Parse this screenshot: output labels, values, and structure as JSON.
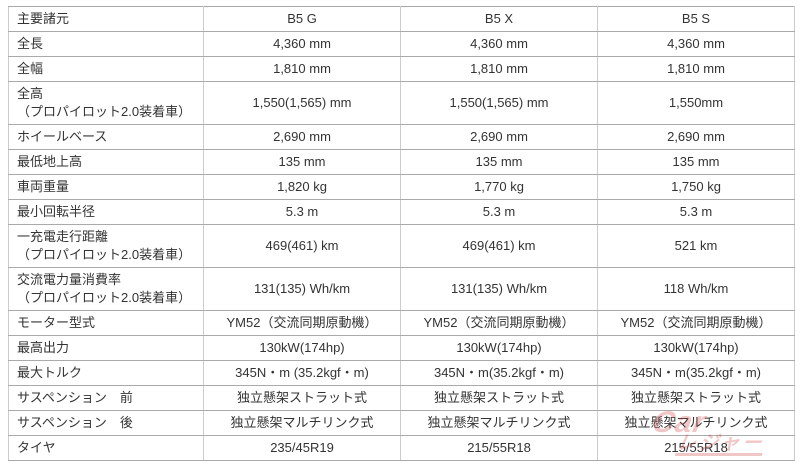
{
  "table": {
    "header": [
      "主要諸元",
      "B5 G",
      "B5 X",
      "B5 S"
    ],
    "rows": [
      {
        "label": "全長",
        "values": [
          "4,360 mm",
          "4,360 mm",
          "4,360 mm"
        ]
      },
      {
        "label": "全幅",
        "values": [
          "1,810 mm",
          "1,810 mm",
          "1,810 mm"
        ]
      },
      {
        "label": "全高",
        "label2": "（プロパイロット2.0装着車）",
        "values": [
          "1,550(1,565) mm",
          "1,550(1,565) mm",
          "1,550mm"
        ]
      },
      {
        "label": "ホイールベース",
        "values": [
          "2,690 mm",
          "2,690 mm",
          "2,690 mm"
        ]
      },
      {
        "label": "最低地上高",
        "values": [
          "135 mm",
          "135 mm",
          "135 mm"
        ]
      },
      {
        "label": "車両重量",
        "values": [
          "1,820 kg",
          "1,770 kg",
          "1,750 kg"
        ]
      },
      {
        "label": "最小回転半径",
        "values": [
          "5.3 m",
          "5.3 m",
          "5.3 m"
        ]
      },
      {
        "label": "一充電走行距離",
        "label2": "（プロパイロット2.0装着車）",
        "values": [
          "469(461) km",
          "469(461) km",
          "521 km"
        ]
      },
      {
        "label": "交流電力量消費率",
        "label2": "（プロパイロット2.0装着車）",
        "values": [
          "131(135) Wh/km",
          "131(135) Wh/km",
          "118 Wh/km"
        ]
      },
      {
        "label": "モーター型式",
        "values": [
          "YM52（交流同期原動機）",
          "YM52（交流同期原動機）",
          "YM52（交流同期原動機）"
        ]
      },
      {
        "label": "最高出力",
        "values": [
          "130kW(174hp)",
          "130kW(174hp)",
          "130kW(174hp)"
        ]
      },
      {
        "label": "最大トルク",
        "values": [
          "345N・m (35.2kgf・m)",
          "345N・m(35.2kgf・m)",
          "345N・m(35.2kgf・m)"
        ]
      },
      {
        "label": "サスペンション　前",
        "values": [
          "独立懸架ストラット式",
          "独立懸架ストラット式",
          "独立懸架ストラット式"
        ]
      },
      {
        "label": "サスペンション　後",
        "values": [
          "独立懸架マルチリンク式",
          "独立懸架マルチリンク式",
          "独立懸架マルチリンク式"
        ]
      },
      {
        "label": "タイヤ",
        "values": [
          "235/45R19",
          "215/55R18",
          "215/55R18"
        ]
      }
    ]
  },
  "watermark": {
    "line1": "Car",
    "line2": "レジャー"
  },
  "colors": {
    "border_horizontal": "#aaaaaa",
    "border_vertical": "#cccccc",
    "text": "#333333",
    "watermark_red": "#d04545",
    "background": "#ffffff"
  }
}
